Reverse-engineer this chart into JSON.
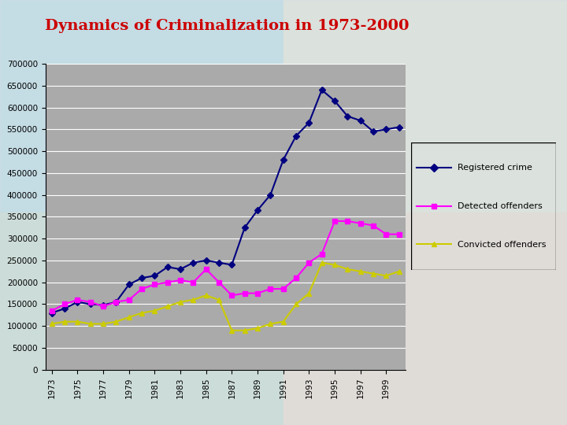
{
  "title": "Dynamics of Criminalization in 1973-2000",
  "title_color": "#cc0000",
  "title_fontsize": 14,
  "years": [
    1973,
    1974,
    1975,
    1976,
    1977,
    1978,
    1979,
    1980,
    1981,
    1982,
    1983,
    1984,
    1985,
    1986,
    1987,
    1988,
    1989,
    1990,
    1991,
    1992,
    1993,
    1994,
    1995,
    1996,
    1997,
    1998,
    1999,
    2000
  ],
  "registered_crime": [
    130000,
    140000,
    155000,
    150000,
    148000,
    155000,
    195000,
    210000,
    215000,
    235000,
    230000,
    245000,
    250000,
    245000,
    240000,
    325000,
    365000,
    400000,
    480000,
    535000,
    565000,
    640000,
    615000,
    580000,
    570000,
    545000,
    550000,
    555000
  ],
  "detected_offenders": [
    135000,
    150000,
    160000,
    155000,
    145000,
    155000,
    160000,
    185000,
    195000,
    200000,
    205000,
    200000,
    230000,
    200000,
    170000,
    175000,
    175000,
    185000,
    185000,
    210000,
    245000,
    265000,
    340000,
    340000,
    335000,
    330000,
    310000,
    310000
  ],
  "convicted_offenders": [
    105000,
    110000,
    110000,
    105000,
    105000,
    110000,
    120000,
    130000,
    135000,
    145000,
    155000,
    160000,
    170000,
    160000,
    90000,
    90000,
    95000,
    105000,
    110000,
    150000,
    175000,
    245000,
    240000,
    230000,
    225000,
    220000,
    215000,
    225000
  ],
  "registered_color": "#000080",
  "detected_color": "#ff00ff",
  "convicted_color": "#cccc00",
  "plot_bg_color": "#aaaaaa",
  "ylim": [
    0,
    700000
  ],
  "yticks": [
    0,
    50000,
    100000,
    150000,
    200000,
    250000,
    300000,
    350000,
    400000,
    450000,
    500000,
    550000,
    600000,
    650000,
    700000
  ],
  "legend_bg_color": "#888888",
  "grid_color": "#ffffff",
  "bg_colors": {
    "top_left": "#c8e8e0",
    "top_right": "#e8f0f8",
    "bottom_left": "#d0e8d8",
    "bottom_right": "#f8e8d0"
  }
}
